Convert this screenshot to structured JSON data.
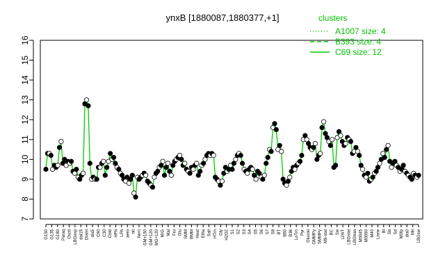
{
  "chart_data": {
    "type": "line",
    "title": "ynxB [1880087,1880377,+1]",
    "xlabel": "",
    "ylabel": "",
    "ylim": [
      7,
      16
    ],
    "yticks": [
      7,
      8,
      9,
      10,
      11,
      12,
      13,
      14,
      15,
      16
    ],
    "grid": false,
    "legend_placement": "top-right",
    "legend_title": "clusters",
    "legend": [
      {
        "label": "A1007 size: 4",
        "style": "dotted"
      },
      {
        "label": "B393 size: 4",
        "style": "dashed"
      },
      {
        "label": "C69 size: 12",
        "style": "solid"
      }
    ],
    "line_color": "#00cc00",
    "x_labels": [
      "G150",
      "G135",
      "G180",
      "Paraq",
      "Oxctl",
      "LBGexp",
      "dal15",
      "Diami",
      "dia5",
      "C90",
      "C30",
      "Cold",
      "HPh",
      "LPh",
      "aero",
      "nit",
      "ferm",
      "GM+150",
      "GM+120",
      "GM+90",
      "MG+120",
      "MG+60",
      "MG+45",
      "MG+25",
      "MG+15",
      "MG+10",
      "MG+5",
      "MG+t5",
      "M/G",
      "MG-10",
      "MG-5",
      "MG-15",
      "M/G25",
      "M/G45",
      "M/G90",
      "Mal",
      "Fru",
      "Glu",
      "SMM",
      "BMM",
      "Heat",
      "Etha",
      "Salt",
      "HTm",
      "Gly",
      "S1",
      "H2O2",
      "S2",
      "S3",
      "S4",
      "S5",
      "S6",
      "S7",
      "S8",
      "BT",
      "B60",
      "B36",
      "LoTm",
      "Pyr",
      "Glucon",
      "GMMPy",
      "SMMPy",
      "T-0.40",
      "T-1.10",
      "T-2.40",
      "T-3.40",
      "T5.40",
      "M9-stat",
      "Ctrl",
      "Sw",
      "LPhT",
      "LBGstat",
      "LBGtran",
      "M0045",
      "M0090",
      "M40",
      "Lisrw",
      "Bl",
      "Sb",
      "Sd",
      "M0fp",
      "dia0",
      "Mit",
      "LBGsw"
    ],
    "x_labels_shown": [
      "G150",
      "G135",
      "G180",
      "Paraq",
      "Oxctl",
      "LBGexp",
      "dal15",
      "Diami",
      "dia5",
      "C90",
      "C30",
      "Cold",
      "HPh",
      "LPh",
      "aero",
      "nit",
      "ferm",
      "GM+150",
      "GM+120",
      "MG+120",
      "M/G",
      "Mal",
      "Fru",
      "Glu",
      "SMM",
      "BMM",
      "Heat",
      "Etha",
      "Salt",
      "HTm",
      "Gly",
      "H2O2",
      "S1",
      "S2",
      "S3",
      "S4",
      "S5",
      "S6",
      "S7",
      "S8",
      "BT",
      "B60",
      "B36",
      "LoTm",
      "Pyr",
      "Glucon",
      "GMMPy",
      "SMMPy",
      "M9-stat",
      "BC",
      "Sw",
      "LPhT",
      "LBGstat",
      "LBGtran",
      "M0045",
      "M0090",
      "M40",
      "Lisrw",
      "Bl",
      "Sb",
      "Sd",
      "M0fp",
      "dia0",
      "Mit",
      "LBGsw"
    ],
    "series": [
      {
        "values": [
          9.5,
          10.3,
          10.3,
          10.2,
          9.5,
          9.7,
          9.6,
          9.7,
          10.6,
          10.9,
          9.8,
          10.0,
          9.7,
          9.9,
          9.8,
          9.9,
          9.4,
          9.3,
          9.5,
          9.1,
          9.0,
          9.2,
          9.3,
          12.8,
          13.0,
          12.7,
          9.8,
          9.0,
          9.1,
          9.0,
          9.0,
          9.6,
          9.6,
          9.8,
          9.9,
          9.2,
          9.6,
          9.9,
          10.3,
          10.0,
          10.1,
          9.8,
          9.6,
          9.5,
          9.3,
          9.2,
          9.0,
          8.9,
          9.1,
          8.8,
          9.0,
          9.2,
          8.3,
          8.1,
          9.1,
          9.0,
          9.1,
          9.2,
          9.3,
          9.2,
          8.9,
          8.8,
          8.7,
          8.6,
          9.1,
          9.3,
          9.4,
          9.6,
          9.7,
          9.9,
          9.2,
          9.6,
          9.8,
          9.4,
          9.2,
          9.7,
          9.9,
          10.0,
          10.1,
          10.2,
          10.0,
          9.7,
          9.8,
          9.5,
          9.4,
          9.3,
          9.6,
          9.5,
          9.7,
          9.8,
          9.2,
          9.4,
          9.7,
          9.8,
          10.0,
          10.2,
          10.3,
          10.2,
          10.3,
          10.2,
          9.1,
          9.0,
          8.9,
          8.7,
          8.9,
          9.3,
          9.6,
          9.4,
          9.5,
          9.7,
          9.5,
          9.8,
          10.0,
          10.2,
          10.3,
          10.2,
          9.8,
          9.5,
          9.4,
          9.3,
          9.5,
          9.6,
          9.5,
          9.2,
          9.0,
          9.4,
          9.3,
          9.1,
          9.0,
          9.2,
          9.8,
          10.1,
          10.5,
          10.4,
          11.6,
          11.8,
          11.5,
          10.5,
          10.7,
          10.4,
          9.0,
          8.8,
          8.7,
          8.9,
          9.1,
          9.4,
          9.6,
          9.5,
          9.7,
          9.8,
          9.9,
          10.2,
          11.0,
          11.2,
          11.0,
          10.8,
          10.6,
          10.5,
          10.6,
          10.8,
          10.0,
          10.2,
          10.3,
          11.6,
          11.9,
          11.3,
          11.1,
          10.9,
          10.7,
          11.0,
          9.6,
          9.7,
          11.1,
          11.4,
          11.2,
          10.9,
          10.7,
          10.8,
          11.1,
          11.0,
          10.9,
          10.3,
          10.4,
          10.6,
          10.4,
          10.2,
          9.7,
          9.5,
          9.2,
          9.1,
          9.3,
          8.9,
          9.0,
          9.1,
          9.3,
          9.4,
          9.6,
          9.8,
          10.0,
          10.3,
          10.1,
          10.5,
          10.7,
          9.9,
          9.6,
          9.8,
          9.9,
          9.7,
          9.6,
          9.4,
          9.5,
          9.7,
          9.4,
          9.3,
          9.2,
          9.1,
          9.0,
          9.3,
          9.2,
          9.1,
          9.2
        ]
      }
    ]
  }
}
